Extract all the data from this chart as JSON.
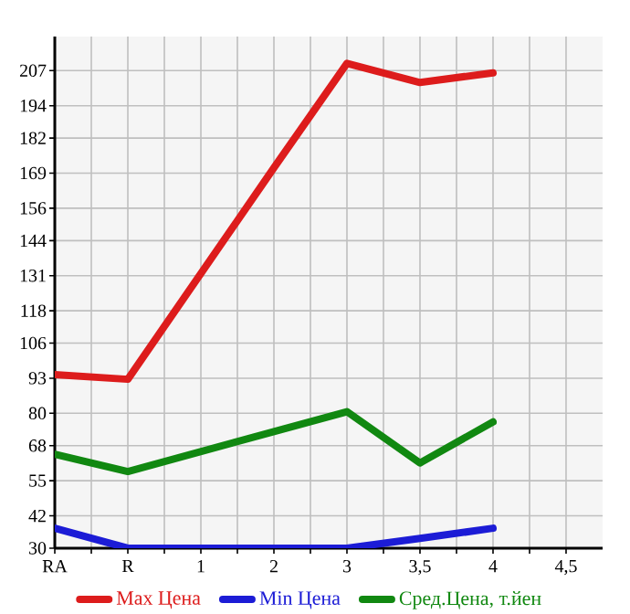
{
  "chart_data": {
    "type": "line",
    "categories": [
      "RA",
      "R",
      "1",
      "2",
      "3",
      "3,5",
      "4",
      "4,5"
    ],
    "series": [
      {
        "name": "Max Цена",
        "color": "#dd1c1c",
        "values": [
          94.3,
          92.6,
          131.8,
          171.0,
          209.7,
          202.6,
          206.2,
          null
        ]
      },
      {
        "name": "Min Цена",
        "color": "#1c1cd6",
        "values": [
          37.4,
          30,
          30,
          30,
          30,
          33.6,
          37.4,
          null
        ]
      },
      {
        "name": "Сред.Цена, т.йен",
        "color": "#118811",
        "values": [
          64.8,
          58.4,
          65.8,
          73.2,
          80.6,
          61.6,
          76.8,
          null
        ]
      }
    ],
    "ylim": [
      30,
      219.64
    ],
    "yticks": [
      30,
      42,
      55,
      68,
      80,
      93,
      106,
      118,
      131,
      144,
      156,
      169,
      182,
      194,
      207
    ],
    "grid": true,
    "legend": "bottom"
  }
}
